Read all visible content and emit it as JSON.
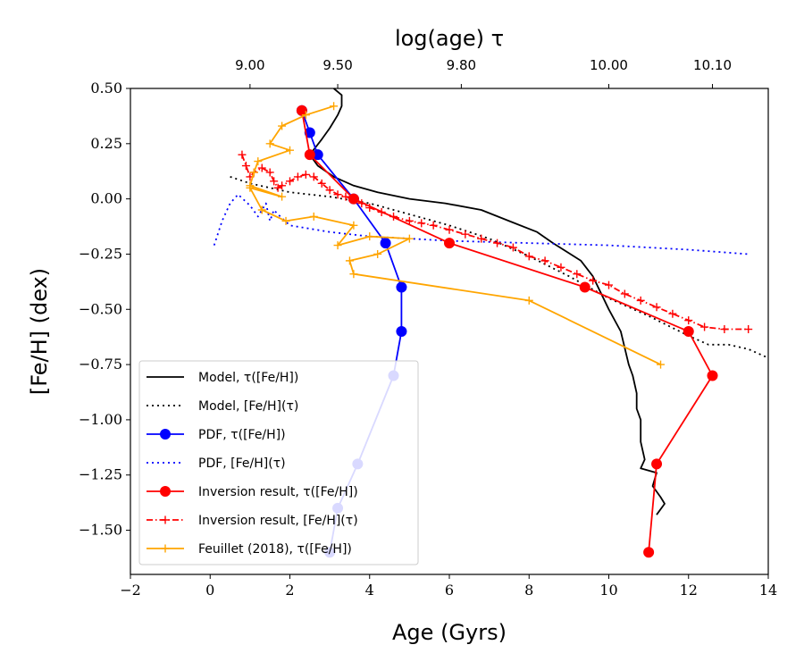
{
  "chart_data": {
    "type": "line",
    "xlabel": "Age (Gyrs)",
    "ylabel": "[Fe/H] (dex)",
    "top_xlabel": "log(age) τ",
    "xlim": [
      -2,
      14
    ],
    "ylim": [
      -1.7,
      0.5
    ],
    "xticks": [
      -2,
      0,
      2,
      4,
      6,
      8,
      10,
      12,
      14
    ],
    "xtick_labels": [
      "−2",
      "0",
      "2",
      "4",
      "6",
      "8",
      "10",
      "12",
      "14"
    ],
    "yticks": [
      0.5,
      0.25,
      0.0,
      -0.25,
      -0.5,
      -0.75,
      -1.0,
      -1.25,
      -1.5
    ],
    "ytick_labels": [
      "0.50",
      "0.25",
      "0.00",
      "−0.25",
      "−0.50",
      "−0.75",
      "−1.00",
      "−1.25",
      "−1.50"
    ],
    "top_ticks": [
      {
        "age": 1.0,
        "label": "9.00"
      },
      {
        "age": 3.2,
        "label": "9.50"
      },
      {
        "age": 6.3,
        "label": "9.80"
      },
      {
        "age": 10.0,
        "label": "10.00"
      },
      {
        "age": 12.6,
        "label": "10.10"
      }
    ],
    "legend_position": "lower-left",
    "series": [
      {
        "name": "Model, τ([Fe/H])",
        "color": "#000000",
        "style": "solid",
        "marker": "none",
        "x": [
          11.2,
          11.4,
          11.3,
          11.1,
          11.2,
          10.8,
          10.9,
          10.8,
          10.8,
          10.8,
          10.7,
          10.7,
          10.6,
          10.5,
          10.3,
          10.0,
          9.6,
          9.3,
          8.6,
          8.2,
          7.5,
          6.8,
          5.9,
          5.0,
          4.2,
          3.6,
          3.1,
          2.7,
          2.5,
          2.8,
          3.0,
          3.2,
          3.3,
          3.3,
          3.1
        ],
        "y": [
          -1.43,
          -1.38,
          -1.35,
          -1.3,
          -1.24,
          -1.22,
          -1.18,
          -1.1,
          -1.05,
          -1.0,
          -0.95,
          -0.88,
          -0.8,
          -0.75,
          -0.6,
          -0.5,
          -0.35,
          -0.28,
          -0.2,
          -0.15,
          -0.1,
          -0.05,
          -0.02,
          0.0,
          0.03,
          0.06,
          0.1,
          0.15,
          0.2,
          0.27,
          0.32,
          0.38,
          0.42,
          0.47,
          0.5
        ]
      },
      {
        "name": "Model, [Fe/H](τ)",
        "color": "#000000",
        "style": "dotted",
        "marker": "none",
        "x": [
          0.5,
          1.0,
          2.0,
          3.0,
          4.0,
          5.0,
          6.0,
          7.0,
          8.0,
          9.0,
          10.0,
          11.0,
          12.0,
          12.5,
          13.0,
          13.5,
          14.0
        ],
        "y": [
          0.1,
          0.07,
          0.03,
          0.01,
          -0.02,
          -0.07,
          -0.12,
          -0.18,
          -0.26,
          -0.35,
          -0.45,
          -0.53,
          -0.62,
          -0.66,
          -0.66,
          -0.68,
          -0.72
        ]
      },
      {
        "name": "PDF, τ([Fe/H])",
        "color": "#0000ff",
        "style": "solid",
        "marker": "circle",
        "x": [
          3.0,
          3.2,
          3.7,
          4.6,
          4.8,
          4.8,
          4.4,
          3.6,
          2.7,
          2.5,
          2.3
        ],
        "y": [
          -1.6,
          -1.4,
          -1.2,
          -0.8,
          -0.6,
          -0.4,
          -0.2,
          0.0,
          0.2,
          0.3,
          0.4
        ]
      },
      {
        "name": "PDF, [Fe/H](τ)",
        "color": "#0000ff",
        "style": "dotted",
        "marker": "none",
        "x": [
          0.1,
          0.3,
          0.5,
          0.7,
          1.0,
          1.2,
          1.4,
          1.5,
          1.6,
          1.7,
          2.0,
          3.0,
          4.0,
          5.0,
          6.0,
          8.0,
          10.0,
          12.0,
          13.5
        ],
        "y": [
          -0.21,
          -0.1,
          -0.02,
          0.02,
          -0.03,
          -0.08,
          -0.02,
          -0.1,
          -0.05,
          -0.07,
          -0.12,
          -0.15,
          -0.17,
          -0.18,
          -0.19,
          -0.2,
          -0.21,
          -0.23,
          -0.25
        ]
      },
      {
        "name": "Inversion result, τ([Fe/H])",
        "color": "#ff0000",
        "style": "solid",
        "marker": "circle",
        "x": [
          11.0,
          11.2,
          12.6,
          12.0,
          9.4,
          6.0,
          3.6,
          2.5,
          2.3
        ],
        "y": [
          -1.6,
          -1.2,
          -0.8,
          -0.6,
          -0.4,
          -0.2,
          0.0,
          0.2,
          0.4
        ]
      },
      {
        "name": "Inversion result, [Fe/H](τ)",
        "color": "#ff0000",
        "style": "dashdot",
        "marker": "plus",
        "x": [
          0.8,
          0.9,
          1.0,
          1.1,
          1.3,
          1.5,
          1.6,
          1.7,
          1.8,
          2.0,
          2.2,
          2.4,
          2.6,
          2.8,
          3.0,
          3.2,
          3.4,
          3.6,
          3.8,
          4.0,
          4.3,
          4.6,
          5.0,
          5.3,
          5.6,
          6.0,
          6.4,
          6.8,
          7.2,
          7.6,
          8.0,
          8.4,
          8.8,
          9.2,
          9.6,
          10.0,
          10.4,
          10.8,
          11.2,
          11.6,
          12.0,
          12.4,
          12.9,
          13.5
        ],
        "y": [
          0.2,
          0.15,
          0.1,
          0.12,
          0.14,
          0.12,
          0.08,
          0.05,
          0.06,
          0.08,
          0.1,
          0.11,
          0.1,
          0.07,
          0.04,
          0.02,
          0.01,
          0.0,
          -0.02,
          -0.04,
          -0.06,
          -0.08,
          -0.1,
          -0.11,
          -0.12,
          -0.14,
          -0.16,
          -0.18,
          -0.2,
          -0.22,
          -0.26,
          -0.28,
          -0.31,
          -0.34,
          -0.37,
          -0.39,
          -0.43,
          -0.46,
          -0.49,
          -0.52,
          -0.55,
          -0.58,
          -0.59,
          -0.59
        ]
      },
      {
        "name": "Feuillet (2018), τ([Fe/H])",
        "color": "#ffa500",
        "style": "solid",
        "marker": "plus",
        "x": [
          3.1,
          2.4,
          1.8,
          1.5,
          2.0,
          1.2,
          1.1,
          1.0,
          1.8,
          1.0,
          1.3,
          1.9,
          2.6,
          3.6,
          3.2,
          4.0,
          5.0,
          4.2,
          3.5,
          3.6,
          8.0,
          11.3
        ],
        "y": [
          0.42,
          0.38,
          0.33,
          0.25,
          0.22,
          0.17,
          0.12,
          0.06,
          0.01,
          0.05,
          -0.05,
          -0.1,
          -0.08,
          -0.12,
          -0.21,
          -0.17,
          -0.18,
          -0.25,
          -0.28,
          -0.34,
          -0.46,
          -0.75
        ]
      }
    ]
  }
}
